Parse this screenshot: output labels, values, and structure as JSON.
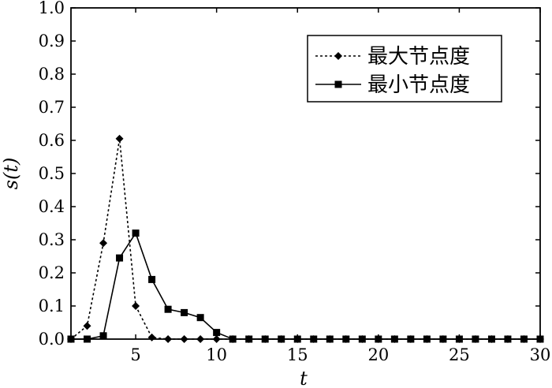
{
  "chart_data": {
    "type": "line",
    "xlabel": "t",
    "ylabel": "s(t)",
    "xlim": [
      1,
      30
    ],
    "ylim": [
      0,
      1.0
    ],
    "xticks": [
      5,
      10,
      15,
      20,
      25,
      30
    ],
    "yticks": [
      "0.0",
      "0.1",
      "0.2",
      "0.3",
      "0.4",
      "0.5",
      "0.6",
      "0.7",
      "0.8",
      "0.9",
      "1.0"
    ],
    "grid": false,
    "legend_position": "top-right",
    "series": [
      {
        "name": "最大节点度",
        "line_style": "dotted",
        "marker": "diamond",
        "color": "#000000",
        "x": [
          1,
          2,
          3,
          4,
          5,
          6,
          7,
          8,
          9,
          10,
          11,
          12,
          13,
          14,
          15,
          16,
          17,
          18,
          19,
          20,
          21,
          22,
          23,
          24,
          25,
          26,
          27,
          28,
          29,
          30
        ],
        "y": [
          0.0,
          0.04,
          0.29,
          0.605,
          0.1,
          0.005,
          0.0,
          0.0,
          0.0,
          0.0,
          0.0,
          0.0,
          0.0,
          0.0,
          0.0,
          0.0,
          0.0,
          0.0,
          0.0,
          0.0,
          0.0,
          0.0,
          0.0,
          0.0,
          0.0,
          0.0,
          0.0,
          0.0,
          0.0,
          0.0
        ]
      },
      {
        "name": "最小节点度",
        "line_style": "solid",
        "marker": "square",
        "color": "#000000",
        "x": [
          1,
          2,
          3,
          4,
          5,
          6,
          7,
          8,
          9,
          10,
          11,
          12,
          13,
          14,
          15,
          16,
          17,
          18,
          19,
          20,
          21,
          22,
          23,
          24,
          25,
          26,
          27,
          28,
          29,
          30
        ],
        "y": [
          0.0,
          0.0,
          0.01,
          0.245,
          0.32,
          0.18,
          0.09,
          0.08,
          0.065,
          0.02,
          0.0,
          0.0,
          0.0,
          0.0,
          0.0,
          0.0,
          0.0,
          0.0,
          0.0,
          0.0,
          0.0,
          0.0,
          0.0,
          0.0,
          0.0,
          0.0,
          0.0,
          0.0,
          0.0,
          0.0
        ]
      }
    ]
  }
}
